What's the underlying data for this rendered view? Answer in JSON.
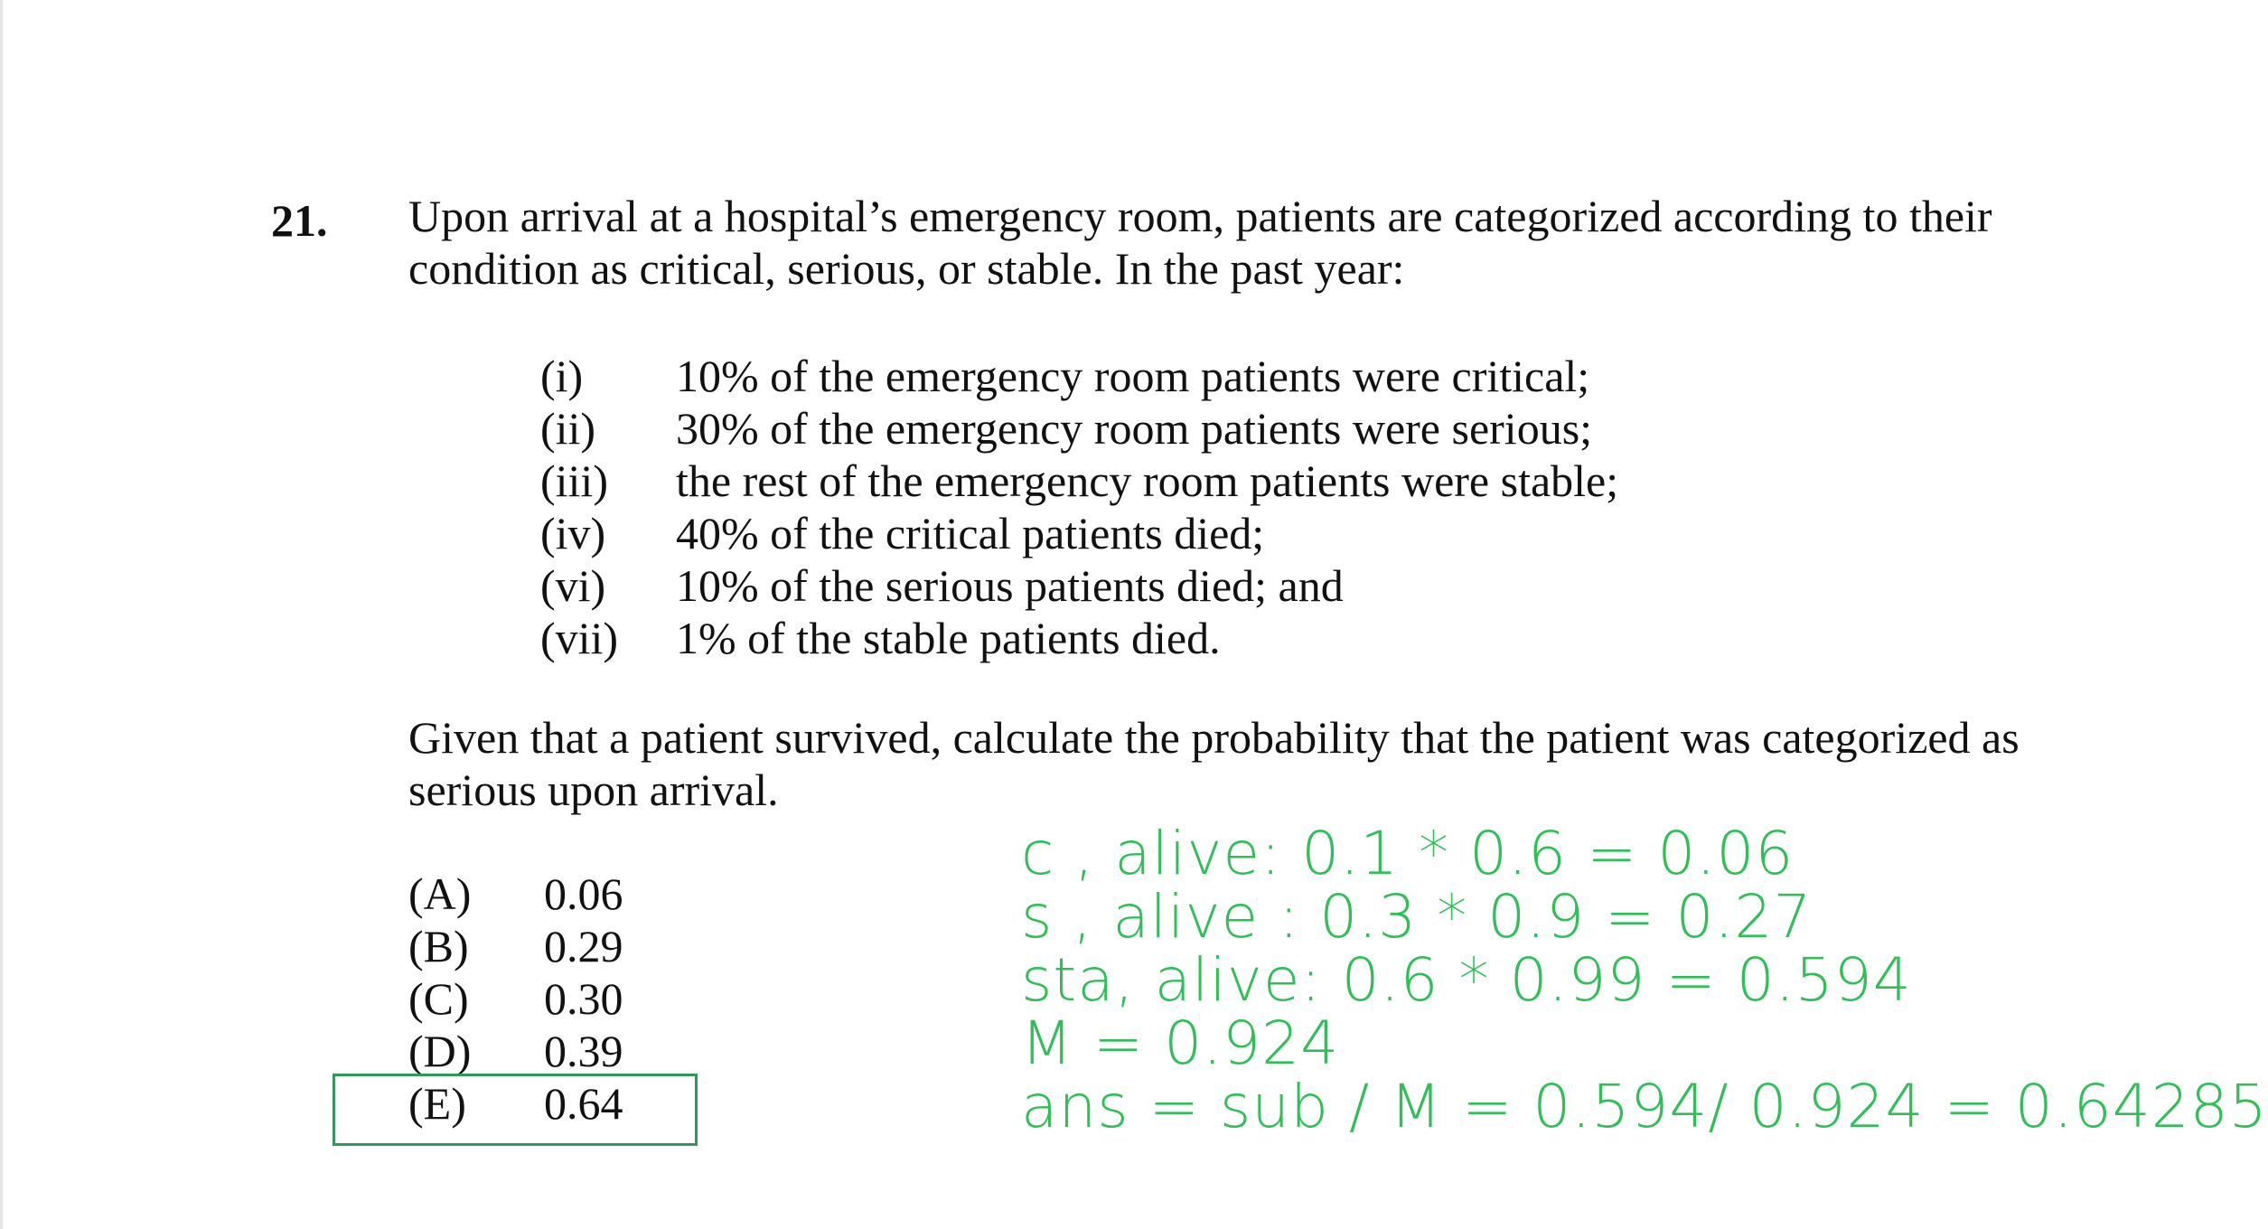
{
  "problem": {
    "number": "21.",
    "stem_lines": [
      "Upon arrival at a hospital’s emergency room, patients are categorized according to their",
      "condition as critical, serious, or stable.  In the past year:"
    ],
    "conditions": [
      {
        "label": "(i)",
        "text": "10% of the emergency room patients were critical;"
      },
      {
        "label": "(ii)",
        "text": "30% of the emergency room patients were serious;"
      },
      {
        "label": "(iii)",
        "text": "the rest of the emergency room patients were stable;"
      },
      {
        "label": "(iv)",
        "text": "40% of the critical patients died;"
      },
      {
        "label": "(vi)",
        "text": "10% of the serious patients died; and"
      },
      {
        "label": "(vii)",
        "text": "1% of the stable patients died."
      }
    ],
    "question_lines": [
      "Given that a patient survived, calculate the probability that the patient was categorized as",
      "serious upon arrival."
    ],
    "choices": [
      {
        "letter": "(A)",
        "value": "0.06"
      },
      {
        "letter": "(B)",
        "value": "0.29"
      },
      {
        "letter": "(C)",
        "value": "0.30"
      },
      {
        "letter": "(D)",
        "value": "0.39"
      },
      {
        "letter": "(E)",
        "value": "0.64"
      }
    ],
    "selected_choice": "(E)"
  },
  "handwritten_notes": {
    "color": "#2fbf57",
    "box_color": "#2f9a57",
    "lines": [
      "c , alive:   0.1 * 0.6  = 0.06",
      "s , alive :  0.3 * 0.9  = 0.27",
      "sta, alive:   0.6 * 0.99 =  0.594",
      "M =  0.924",
      "ans = sub / M  = 0.594/ 0.924  = 0.64285"
    ]
  }
}
